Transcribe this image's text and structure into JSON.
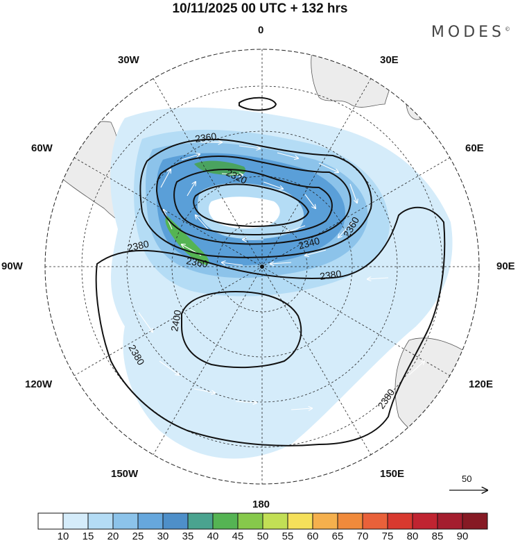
{
  "title": "10/11/2025  00 UTC  + 132 hrs",
  "brand": "MODES",
  "brand_mark": "©",
  "longitude_labels": {
    "lon_0": "0",
    "lon_30e": "30E",
    "lon_60e": "60E",
    "lon_90e": "90E",
    "lon_120e": "120E",
    "lon_150e": "150E",
    "lon_180": "180",
    "lon_150w": "150W",
    "lon_120w": "120W",
    "lon_90w": "90W",
    "lon_60w": "60W",
    "lon_30w": "30W"
  },
  "contours": [
    {
      "label": "2360",
      "value": 2360
    },
    {
      "label": "2320",
      "value": 2320
    },
    {
      "label": "2340",
      "value": 2340
    },
    {
      "label": "2360",
      "value": 2360
    },
    {
      "label": "2380",
      "value": 2380
    },
    {
      "label": "2380",
      "value": 2380
    },
    {
      "label": "2360",
      "value": 2360
    },
    {
      "label": "2400",
      "value": 2400
    },
    {
      "label": "2380",
      "value": 2380
    },
    {
      "label": "2380",
      "value": 2380
    }
  ],
  "reference_vector": {
    "label": "50"
  },
  "colorbar": {
    "ticks": [
      "10",
      "15",
      "20",
      "25",
      "30",
      "35",
      "40",
      "45",
      "50",
      "55",
      "60",
      "65",
      "70",
      "75",
      "80",
      "85",
      "90"
    ],
    "colors": [
      "#ffffff",
      "#d5ecfa",
      "#b4dcf5",
      "#8cc3ea",
      "#66a7dd",
      "#4e8fc9",
      "#4aa38f",
      "#55b453",
      "#86c94b",
      "#c2df55",
      "#f5e05a",
      "#f5b04d",
      "#f08a3b",
      "#e9613a",
      "#d8392f",
      "#c02431",
      "#a41d2e",
      "#861a24"
    ]
  },
  "colors": {
    "land": "#ececec",
    "coast": "#555555",
    "jet_light": "#bcdff6",
    "jet_mid": "#8cc3ea",
    "jet_strong": "#5a9fd8",
    "jet_core": "#4aa35f"
  }
}
